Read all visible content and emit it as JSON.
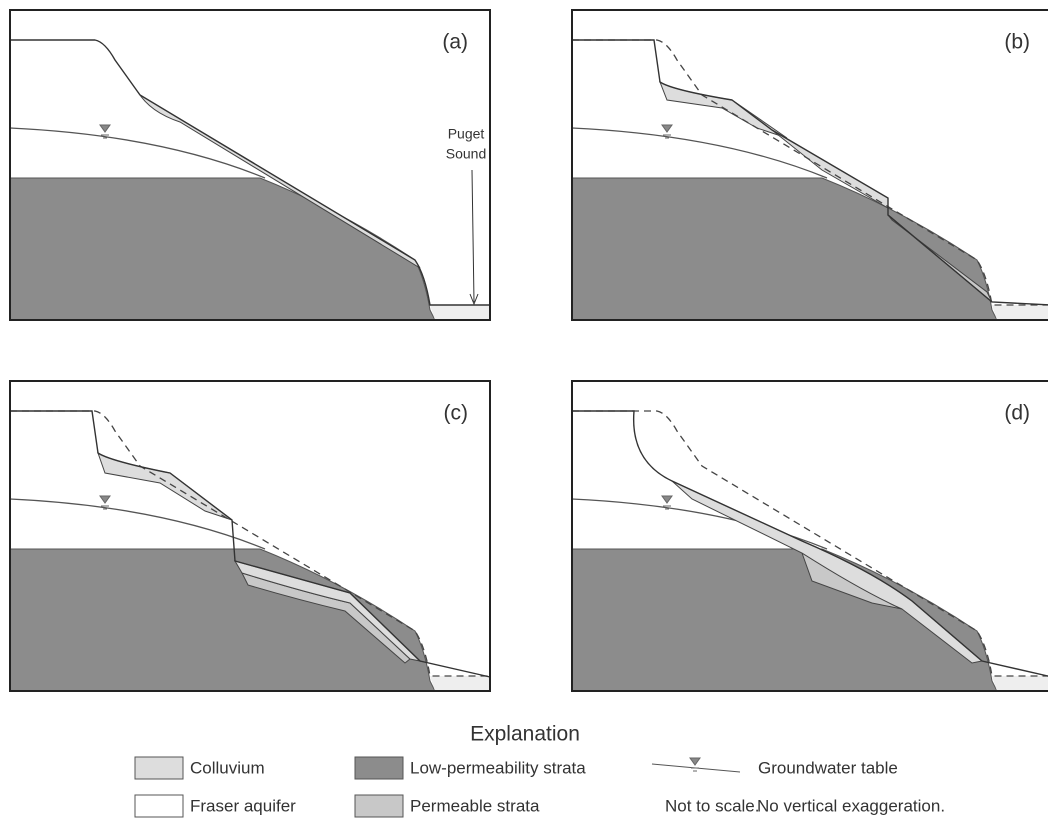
{
  "panels": [
    {
      "label": "(a)",
      "annotation": [
        "Puget",
        "Sound"
      ]
    },
    {
      "label": "(b)"
    },
    {
      "label": "(c)"
    },
    {
      "label": "(d)"
    }
  ],
  "legend": {
    "title": "Explanation",
    "items": [
      "Colluvium",
      "Fraser aquifer",
      "Low-permeability strata",
      "Permeable strata",
      "Groundwater table"
    ],
    "notes": [
      "Not to scale.",
      "No vertical exaggeration."
    ]
  }
}
